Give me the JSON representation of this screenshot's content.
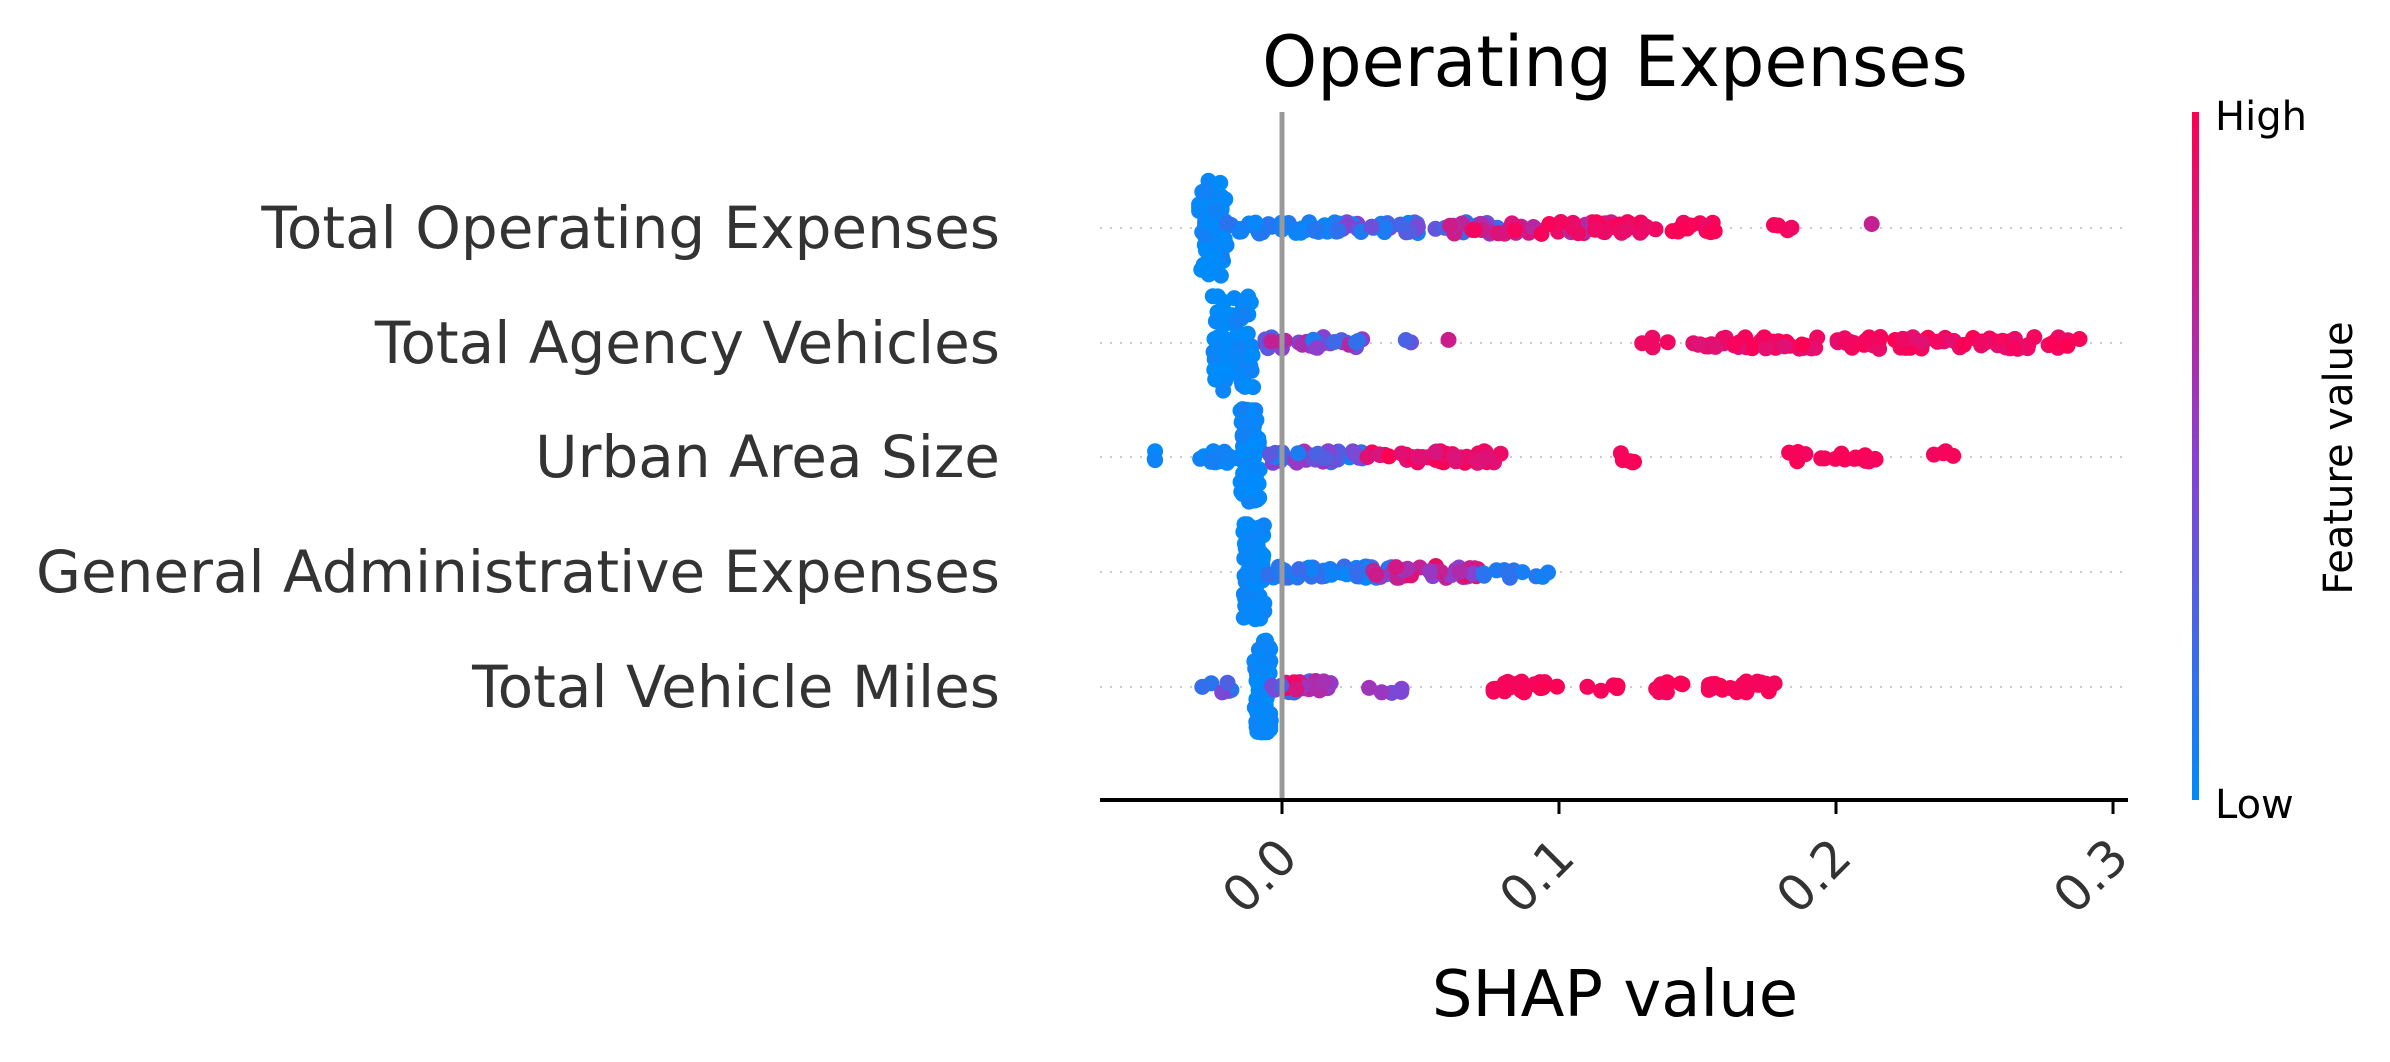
{
  "chart_data": {
    "type": "scatter",
    "subtype": "shap-beeswarm",
    "title": "Operating Expenses",
    "xlabel": "SHAP value",
    "xlim": [
      -0.065,
      0.305
    ],
    "xticks": [
      "0.0",
      "0.1",
      "0.2",
      "0.3"
    ],
    "xtick_values": [
      0.0,
      0.1,
      0.2,
      0.3
    ],
    "zero_line": 0.0,
    "colorbar": {
      "label": "Feature value",
      "high_label": "High",
      "low_label": "Low",
      "low_color": "#008bfb",
      "mid_color": "#8a40d0",
      "high_color": "#ff0052"
    },
    "features": [
      {
        "name": "Total Operating Expenses",
        "segments": [
          {
            "x0": -0.03,
            "x1": -0.02,
            "n": 70,
            "fv": 0.02,
            "fv_spread": 0.05,
            "dense": true
          },
          {
            "x0": -0.02,
            "x1": 0.02,
            "n": 40,
            "fv": 0.08,
            "fv_spread": 0.08
          },
          {
            "x0": 0.02,
            "x1": 0.08,
            "n": 45,
            "fv": 0.28,
            "fv_spread": 0.25
          },
          {
            "x0": 0.06,
            "x1": 0.13,
            "n": 55,
            "fv": 0.78,
            "fv_spread": 0.2
          },
          {
            "x0": 0.1,
            "x1": 0.16,
            "n": 30,
            "fv": 0.95,
            "fv_spread": 0.05
          },
          {
            "x0": 0.175,
            "x1": 0.19,
            "n": 4,
            "fv": 0.95,
            "fv_spread": 0.05
          },
          {
            "x0": 0.212,
            "x1": 0.213,
            "n": 1,
            "fv": 0.75,
            "fv_spread": 0.0
          }
        ]
      },
      {
        "name": "Total Agency Vehicles",
        "segments": [
          {
            "x0": -0.025,
            "x1": -0.01,
            "n": 70,
            "fv": 0.02,
            "fv_spread": 0.05,
            "dense": true
          },
          {
            "x0": -0.008,
            "x1": 0.03,
            "n": 30,
            "fv": 0.45,
            "fv_spread": 0.35
          },
          {
            "x0": 0.038,
            "x1": 0.048,
            "n": 2,
            "fv": 0.35,
            "fv_spread": 0.1
          },
          {
            "x0": 0.06,
            "x1": 0.061,
            "n": 1,
            "fv": 0.78,
            "fv_spread": 0.0
          },
          {
            "x0": 0.13,
            "x1": 0.14,
            "n": 4,
            "fv": 0.95,
            "fv_spread": 0.03
          },
          {
            "x0": 0.148,
            "x1": 0.288,
            "n": 110,
            "fv": 0.93,
            "fv_spread": 0.07
          }
        ]
      },
      {
        "name": "Urban Area Size",
        "segments": [
          {
            "x0": -0.05,
            "x1": -0.044,
            "n": 3,
            "fv": 0.05,
            "fv_spread": 0.05
          },
          {
            "x0": -0.03,
            "x1": -0.01,
            "n": 20,
            "fv": 0.05,
            "fv_spread": 0.05
          },
          {
            "x0": -0.015,
            "x1": -0.008,
            "n": 70,
            "fv": 0.02,
            "fv_spread": 0.05,
            "dense": true
          },
          {
            "x0": -0.005,
            "x1": 0.03,
            "n": 40,
            "fv": 0.35,
            "fv_spread": 0.3
          },
          {
            "x0": 0.03,
            "x1": 0.08,
            "n": 45,
            "fv": 0.9,
            "fv_spread": 0.1
          },
          {
            "x0": 0.122,
            "x1": 0.13,
            "n": 5,
            "fv": 0.97,
            "fv_spread": 0.02
          },
          {
            "x0": 0.183,
            "x1": 0.218,
            "n": 18,
            "fv": 0.97,
            "fv_spread": 0.02
          },
          {
            "x0": 0.23,
            "x1": 0.246,
            "n": 4,
            "fv": 0.96,
            "fv_spread": 0.02
          }
        ]
      },
      {
        "name": "General Administrative Expenses",
        "segments": [
          {
            "x0": -0.014,
            "x1": -0.006,
            "n": 80,
            "fv": 0.02,
            "fv_spread": 0.04,
            "dense": true
          },
          {
            "x0": -0.005,
            "x1": 0.04,
            "n": 55,
            "fv": 0.12,
            "fv_spread": 0.1
          },
          {
            "x0": 0.03,
            "x1": 0.072,
            "n": 40,
            "fv": 0.72,
            "fv_spread": 0.25
          },
          {
            "x0": 0.07,
            "x1": 0.097,
            "n": 12,
            "fv": 0.12,
            "fv_spread": 0.08
          }
        ]
      },
      {
        "name": "Total Vehicle Miles",
        "segments": [
          {
            "x0": -0.03,
            "x1": -0.018,
            "n": 8,
            "fv": 0.25,
            "fv_spread": 0.2
          },
          {
            "x0": -0.01,
            "x1": -0.004,
            "n": 70,
            "fv": 0.02,
            "fv_spread": 0.04,
            "dense": true
          },
          {
            "x0": -0.004,
            "x1": 0.018,
            "n": 30,
            "fv": 0.6,
            "fv_spread": 0.35
          },
          {
            "x0": 0.03,
            "x1": 0.045,
            "n": 5,
            "fv": 0.5,
            "fv_spread": 0.15
          },
          {
            "x0": 0.072,
            "x1": 0.1,
            "n": 22,
            "fv": 0.97,
            "fv_spread": 0.02
          },
          {
            "x0": 0.11,
            "x1": 0.125,
            "n": 5,
            "fv": 0.96,
            "fv_spread": 0.02
          },
          {
            "x0": 0.135,
            "x1": 0.178,
            "n": 35,
            "fv": 0.97,
            "fv_spread": 0.02
          }
        ]
      }
    ]
  }
}
